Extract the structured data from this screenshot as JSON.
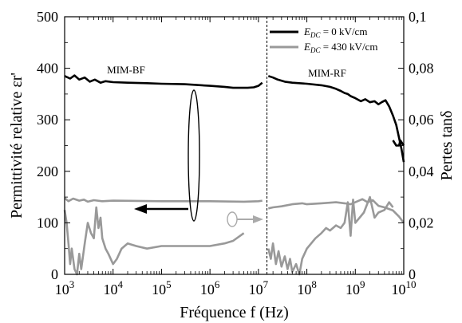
{
  "chart_data": {
    "type": "line",
    "xlabel": "Fréquence f (Hz)",
    "ylabel_left": "Permittivité relative εr'",
    "ylabel_right": "Pertes tanδ",
    "x_scale": "log",
    "xlim": [
      1000,
      10000000000
    ],
    "ylim_left": [
      0,
      500
    ],
    "ylim_right": [
      0,
      0.1
    ],
    "x_ticks": [
      {
        "base": "10",
        "exp": "3"
      },
      {
        "base": "10",
        "exp": "4"
      },
      {
        "base": "10",
        "exp": "5"
      },
      {
        "base": "10",
        "exp": "6"
      },
      {
        "base": "10",
        "exp": "7"
      },
      {
        "base": "10",
        "exp": "8"
      },
      {
        "base": "10",
        "exp": "9"
      },
      {
        "base": "10",
        "exp": "10"
      }
    ],
    "y_ticks_left": [
      "0",
      "100",
      "200",
      "300",
      "400",
      "500"
    ],
    "y_ticks_right": [
      "0",
      "0,02",
      "0,04",
      "0,06",
      "0,08",
      "0,1"
    ],
    "grid": false,
    "legend_position": "top-right",
    "divider_x": 15000000,
    "annotations": [
      "MIM-BF",
      "MIM-RF"
    ],
    "legend": [
      {
        "label_italic": "E",
        "label_sub": "DC",
        "label_rest": " = 0 kV/cm",
        "color": "#000000"
      },
      {
        "label_italic": "E",
        "label_sub": "DC",
        "label_rest": " = 430 kV/cm",
        "color": "#999999"
      }
    ],
    "series": [
      {
        "axis": "left",
        "color": "#000000",
        "role": "permittivity E=0, MIM-BF",
        "points": [
          [
            1000,
            385
          ],
          [
            1300,
            380
          ],
          [
            1600,
            386
          ],
          [
            2000,
            378
          ],
          [
            2600,
            382
          ],
          [
            3300,
            374
          ],
          [
            4200,
            378
          ],
          [
            5500,
            372
          ],
          [
            7000,
            375
          ],
          [
            10000,
            373
          ],
          [
            20000,
            372
          ],
          [
            50000,
            371
          ],
          [
            100000,
            370
          ],
          [
            300000,
            369
          ],
          [
            1000000,
            366
          ],
          [
            2000000,
            364
          ],
          [
            3000000,
            362
          ],
          [
            4000000,
            362
          ],
          [
            6000000,
            362
          ],
          [
            8000000,
            363
          ],
          [
            10000000,
            366
          ],
          [
            12000000,
            372
          ]
        ]
      },
      {
        "axis": "left",
        "color": "#000000",
        "role": "permittivity E=0, MIM-RF",
        "points": [
          [
            16000000,
            385
          ],
          [
            20000000,
            382
          ],
          [
            25000000,
            378
          ],
          [
            35000000,
            374
          ],
          [
            50000000,
            372
          ],
          [
            100000000,
            370
          ],
          [
            200000000,
            367
          ],
          [
            300000000,
            364
          ],
          [
            400000000,
            360
          ],
          [
            500000000,
            356
          ],
          [
            600000000,
            352
          ],
          [
            700000000,
            350
          ],
          [
            800000000,
            346
          ],
          [
            1000000000,
            342
          ],
          [
            1300000000,
            336
          ],
          [
            1600000000,
            340
          ],
          [
            2000000000,
            334
          ],
          [
            2500000000,
            336
          ],
          [
            3000000000,
            330
          ],
          [
            3500000000,
            334
          ],
          [
            4200000000,
            338
          ],
          [
            5000000000,
            326
          ],
          [
            6000000000,
            308
          ],
          [
            7000000000,
            290
          ],
          [
            8000000000,
            265
          ],
          [
            9000000000,
            243
          ],
          [
            10000000000,
            218
          ]
        ]
      },
      {
        "axis": "left",
        "color": "#999999",
        "role": "permittivity E=430, MIM-BF",
        "points": [
          [
            1000,
            148
          ],
          [
            1200,
            142
          ],
          [
            1500,
            147
          ],
          [
            2000,
            143
          ],
          [
            2500,
            145
          ],
          [
            3000,
            141
          ],
          [
            4000,
            144
          ],
          [
            6000,
            142
          ],
          [
            10000,
            143
          ],
          [
            100000,
            142
          ],
          [
            1000000,
            142
          ],
          [
            5000000,
            141
          ],
          [
            10000000,
            142
          ],
          [
            12000000,
            143
          ]
        ]
      },
      {
        "axis": "left",
        "color": "#999999",
        "role": "permittivity E=430, MIM-RF",
        "points": [
          [
            16000000,
            128
          ],
          [
            20000000,
            130
          ],
          [
            30000000,
            132
          ],
          [
            50000000,
            136
          ],
          [
            80000000,
            138
          ],
          [
            100000000,
            136
          ],
          [
            200000000,
            138
          ],
          [
            400000000,
            140
          ],
          [
            600000000,
            138
          ],
          [
            800000000,
            136
          ],
          [
            1000000000,
            140
          ],
          [
            1400000000,
            146
          ],
          [
            1800000000,
            140
          ],
          [
            2300000000,
            144
          ],
          [
            3000000000,
            133
          ],
          [
            4000000000,
            130
          ],
          [
            6000000000,
            124
          ],
          [
            8000000000,
            112
          ],
          [
            10000000000,
            100
          ]
        ]
      },
      {
        "axis": "right",
        "color": "#999999",
        "role": "loss E=430, MIM-RF",
        "points": [
          [
            16000000,
            0.01
          ],
          [
            18000000,
            0.006
          ],
          [
            20000000,
            0.012
          ],
          [
            23000000,
            0.004
          ],
          [
            26000000,
            0.009
          ],
          [
            30000000,
            0.003
          ],
          [
            35000000,
            0.007
          ],
          [
            40000000,
            0.002
          ],
          [
            45000000,
            0.006
          ],
          [
            50000000,
            0.001
          ],
          [
            60000000,
            0.004
          ],
          [
            70000000,
            0.0
          ],
          [
            80000000,
            0.006
          ],
          [
            100000000,
            0.01
          ],
          [
            150000000,
            0.014
          ],
          [
            200000000,
            0.016
          ],
          [
            250000000,
            0.018
          ],
          [
            300000000,
            0.017
          ],
          [
            400000000,
            0.019
          ],
          [
            500000000,
            0.018
          ],
          [
            600000000,
            0.02
          ],
          [
            700000000,
            0.028
          ],
          [
            800000000,
            0.015
          ],
          [
            900000000,
            0.029
          ],
          [
            1000000000,
            0.02
          ],
          [
            1500000000,
            0.024
          ],
          [
            2000000000,
            0.03
          ],
          [
            2500000000,
            0.022
          ],
          [
            3000000000,
            0.024
          ],
          [
            4000000000,
            0.025
          ],
          [
            5000000000,
            0.028
          ],
          [
            6000000000,
            0.026
          ]
        ]
      },
      {
        "axis": "right",
        "color": "#000000",
        "role": "loss E=0, MIM-RF",
        "points": [
          [
            6000000000,
            0.052
          ],
          [
            7000000000,
            0.05
          ],
          [
            8000000000,
            0.05
          ],
          [
            8500000000,
            0.052
          ],
          [
            10000000000,
            0.05
          ]
        ]
      },
      {
        "axis": "right",
        "color": "#999999",
        "role": "loss E=430, MIM-BF",
        "points": [
          [
            1000,
            0.025
          ],
          [
            1100,
            0.02
          ],
          [
            1200,
            0.012
          ],
          [
            1300,
            0.004
          ],
          [
            1400,
            0.01
          ],
          [
            1600,
            0.002
          ],
          [
            1800,
            0.0
          ],
          [
            2000,
            0.008
          ],
          [
            2200,
            0.002
          ],
          [
            2600,
            0.012
          ],
          [
            3000,
            0.02
          ],
          [
            3500,
            0.016
          ],
          [
            4000,
            0.014
          ],
          [
            4500,
            0.026
          ],
          [
            5000,
            0.018
          ],
          [
            5500,
            0.022
          ],
          [
            6000,
            0.014
          ],
          [
            7000,
            0.01
          ],
          [
            8000,
            0.008
          ],
          [
            10000,
            0.004
          ],
          [
            12000,
            0.006
          ],
          [
            15000,
            0.01
          ],
          [
            20000,
            0.012
          ],
          [
            30000,
            0.011
          ],
          [
            50000,
            0.01
          ],
          [
            100000,
            0.011
          ],
          [
            300000,
            0.011
          ],
          [
            1000000,
            0.011
          ],
          [
            2000000,
            0.012
          ],
          [
            3000000,
            0.013
          ],
          [
            5000000,
            0.016
          ]
        ]
      }
    ]
  }
}
